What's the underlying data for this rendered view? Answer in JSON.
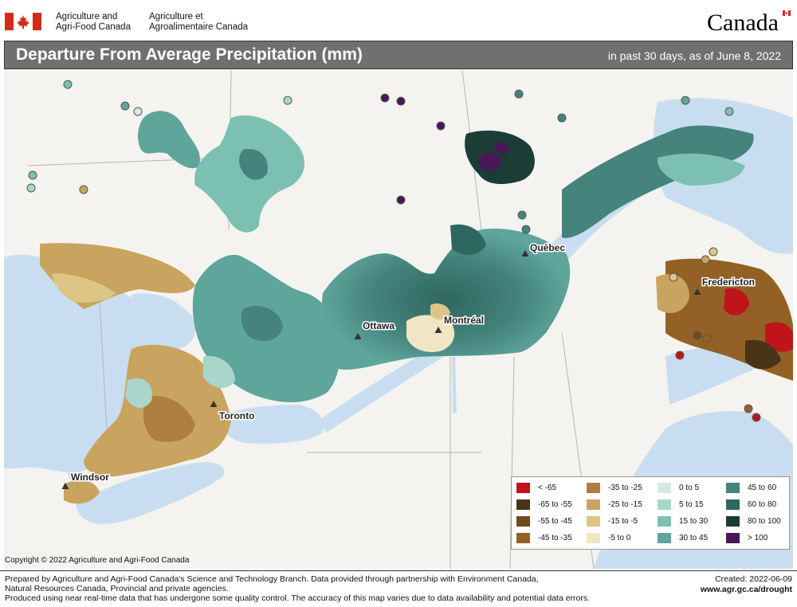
{
  "header": {
    "org_en_line1": "Agriculture and",
    "org_en_line2": "Agri-Food Canada",
    "org_fr_line1": "Agriculture et",
    "org_fr_line2": "Agroalimentaire Canada",
    "wordmark": "Canada"
  },
  "title": "Departure From Average Precipitation (mm)",
  "subtitle": "in past 30 days, as of June 8, 2022",
  "cities": [
    {
      "name": "Québec"
    },
    {
      "name": "Fredericton"
    },
    {
      "name": "Ottawa"
    },
    {
      "name": "Montréal"
    },
    {
      "name": "Toronto"
    },
    {
      "name": "Windsor"
    }
  ],
  "legend": [
    {
      "label": "< -65",
      "color": "#c0141b"
    },
    {
      "label": "-65 to -55",
      "color": "#4a3317"
    },
    {
      "label": "-55 to -45",
      "color": "#6e4a1c"
    },
    {
      "label": "-45 to -35",
      "color": "#936126"
    },
    {
      "label": "-35 to -25",
      "color": "#b07e3c"
    },
    {
      "label": "-25 to -15",
      "color": "#c9a45f"
    },
    {
      "label": "-15 to -5",
      "color": "#dcc585"
    },
    {
      "label": "-5 to 0",
      "color": "#f0e6c4"
    },
    {
      "label": "0 to 5",
      "color": "#d4ebe5"
    },
    {
      "label": "5 to 15",
      "color": "#a9d6cb"
    },
    {
      "label": "15 to 30",
      "color": "#7cc0b1"
    },
    {
      "label": "30 to 45",
      "color": "#5ea59b"
    },
    {
      "label": "45 to 60",
      "color": "#44847d"
    },
    {
      "label": "60 to 80",
      "color": "#2f6760"
    },
    {
      "label": "80 to 100",
      "color": "#1b3d36"
    },
    {
      "label": "> 100",
      "color": "#4a1759"
    }
  ],
  "copyright": "Copyright © 2022 Agriculture and Agri-Food Canada",
  "footer": {
    "line1": "Prepared by Agriculture and Agri-Food Canada's Science and Technology Branch. Data provided through partnership with Environment Canada,",
    "line2": "Natural Resources Canada, Provincial and private agencies.",
    "line3": "Produced using near real-time data that has undergone some quality control. The accuracy of this map varies due to data availability and potential data errors.",
    "created": "Created: 2022-06-09",
    "url": "www.agr.gc.ca/drought"
  }
}
